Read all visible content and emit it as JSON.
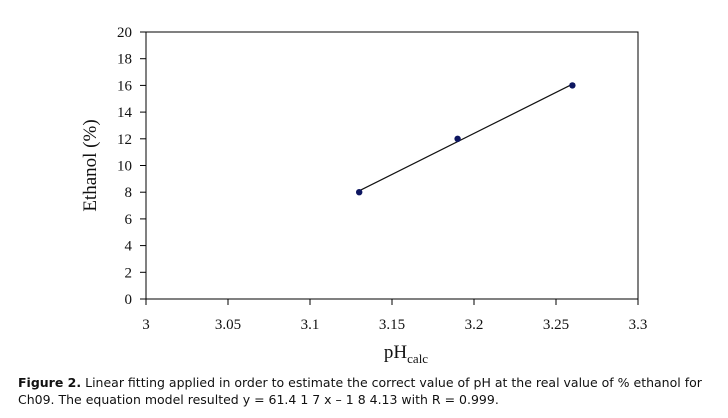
{
  "caption": {
    "label": "Figure 2.",
    "text": "Linear fitting applied in order to estimate the correct value of pH at the real value of % ethanol for Ch09. The equation model resulted y = 61.4 1 7 x – 1 8 4.13 with R = 0.999."
  },
  "chart_data": {
    "type": "scatter",
    "title": "",
    "xlabel": {
      "base": "pH",
      "subscript": "calc"
    },
    "ylabel": "Ethanol (%)",
    "xlim": [
      3,
      3.3
    ],
    "ylim": [
      0,
      20
    ],
    "xticks": [
      3,
      3.05,
      3.1,
      3.15,
      3.2,
      3.25,
      3.3
    ],
    "xtick_labels": [
      "3",
      "3.05",
      "3.1",
      "3.15",
      "3.2",
      "3.25",
      "3.3"
    ],
    "yticks": [
      0,
      2,
      4,
      6,
      8,
      10,
      12,
      14,
      16,
      18,
      20
    ],
    "ytick_labels": [
      "0",
      "2",
      "4",
      "6",
      "8",
      "10",
      "12",
      "14",
      "16",
      "18",
      "20"
    ],
    "grid": false,
    "legend": "none",
    "series": [
      {
        "x": [
          3.13,
          3.19,
          3.26
        ],
        "y": [
          8,
          12,
          16
        ],
        "marker_color": "#0d1660",
        "trendline": {
          "slope": 61.417,
          "intercept": -184.13,
          "x_range": [
            3.13,
            3.26
          ],
          "color": "#111111"
        }
      }
    ]
  }
}
